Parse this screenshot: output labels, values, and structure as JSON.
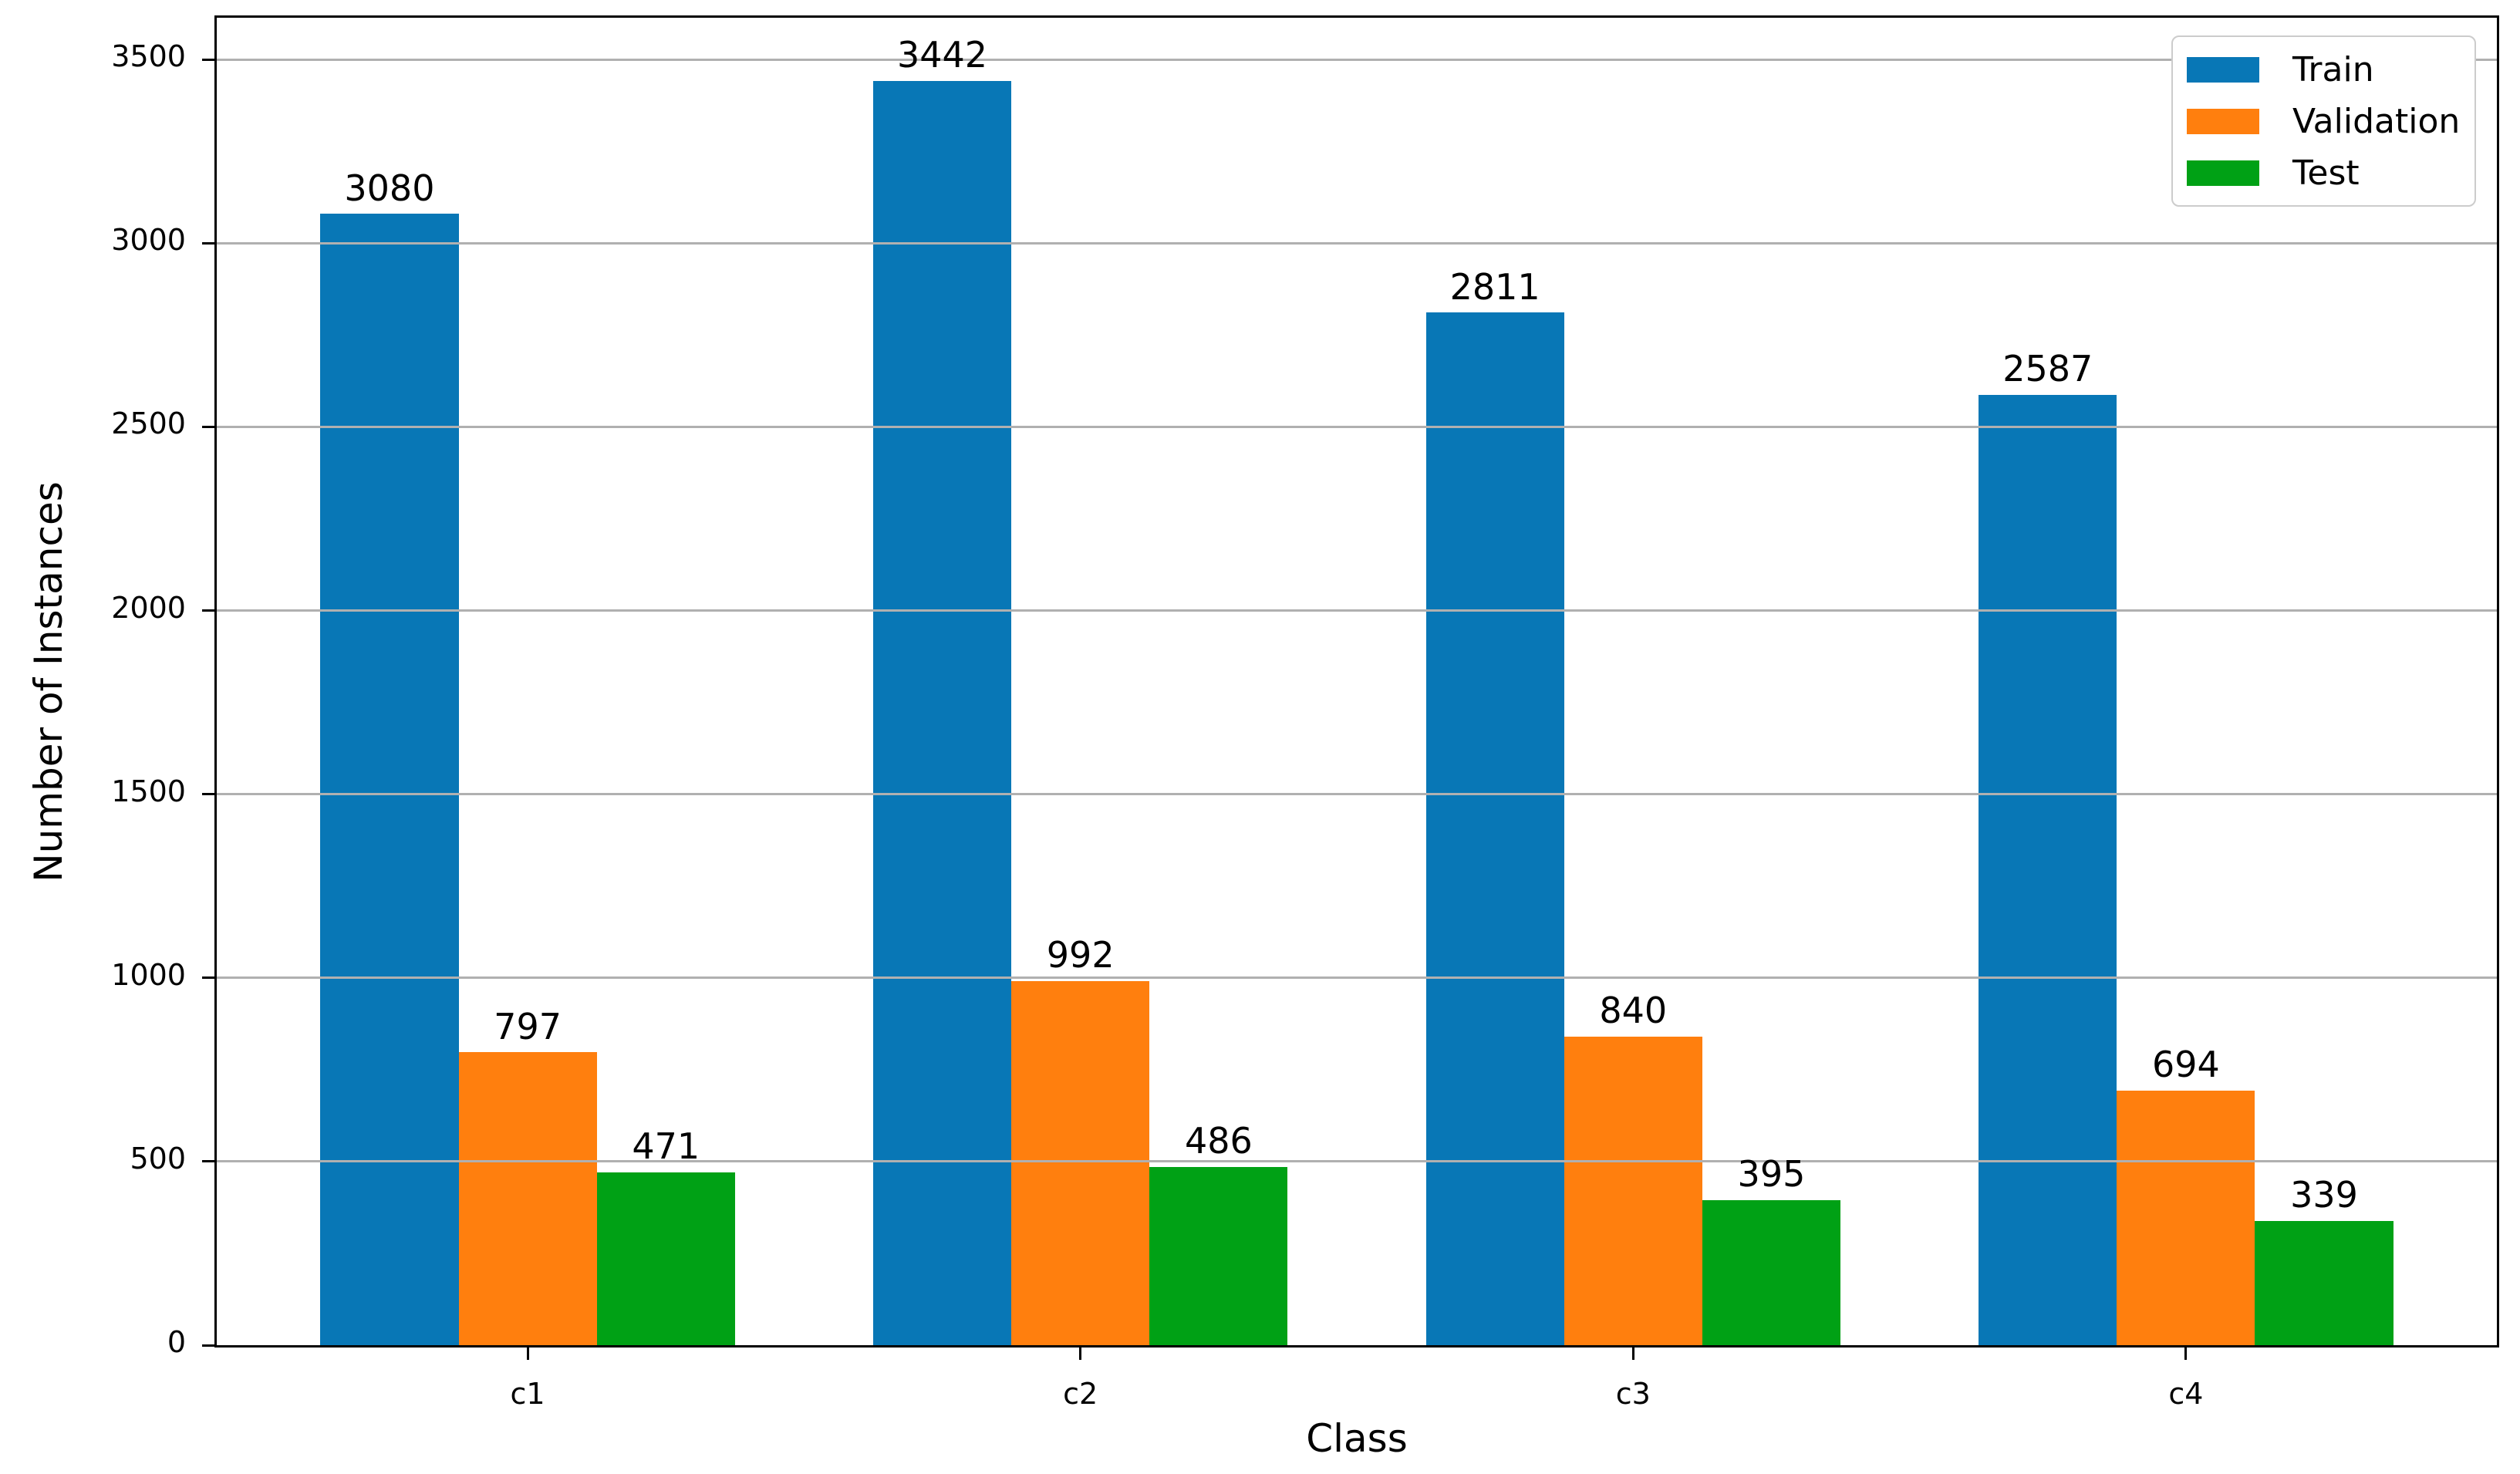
{
  "chart_data": {
    "type": "bar",
    "title": "",
    "xlabel": "Class",
    "ylabel": "Number of Instances",
    "categories": [
      "c1",
      "c2",
      "c3",
      "c4"
    ],
    "series": [
      {
        "name": "Train",
        "color": "#0877b6",
        "values": [
          3080,
          3442,
          2811,
          2587
        ]
      },
      {
        "name": "Validation",
        "color": "#ff7f0e",
        "values": [
          797,
          992,
          840,
          694
        ]
      },
      {
        "name": "Test",
        "color": "#00a115",
        "values": [
          471,
          486,
          395,
          339
        ]
      }
    ],
    "bar_value_labels": [
      [
        "3080",
        "3442",
        "2811",
        "2587"
      ],
      [
        "797",
        "992",
        "840",
        "694"
      ],
      [
        "471",
        "486",
        "395",
        "339"
      ]
    ],
    "yticks": [
      "0",
      "500",
      "1000",
      "1500",
      "2000",
      "2500",
      "3000",
      "3500"
    ],
    "ylim": [
      0,
      3614
    ],
    "grid": "horizontal",
    "grid_color": "#b0b0b0",
    "legend_position": "upper right",
    "legend_entries": [
      "Train",
      "Validation",
      "Test"
    ]
  }
}
